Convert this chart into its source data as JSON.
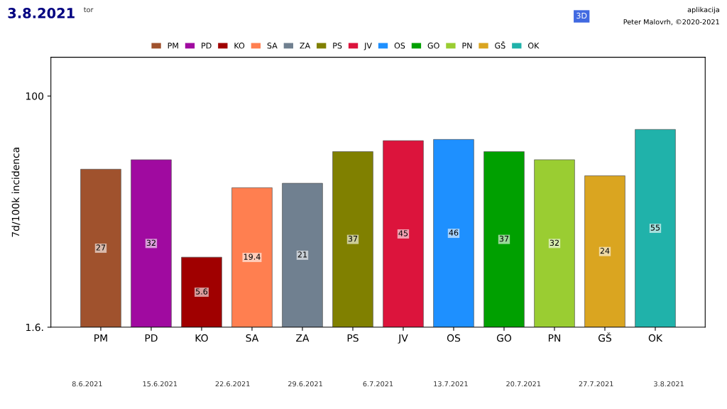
{
  "chart_data": {
    "type": "bar",
    "title": "3.8.2021",
    "subtitle": "tor",
    "ylabel": "7d/100k incidenca",
    "categories": [
      "PM",
      "PD",
      "KO",
      "SA",
      "ZA",
      "PS",
      "JV",
      "OS",
      "GO",
      "PN",
      "GŠ",
      "OK"
    ],
    "series": [
      {
        "name": "PM",
        "color": "#a0522d",
        "values": [
          27,
          null,
          null,
          null,
          null,
          null,
          null,
          null,
          null,
          null,
          null,
          null
        ]
      },
      {
        "name": "PD",
        "color": "#a00aa0",
        "values": [
          null,
          32,
          null,
          null,
          null,
          null,
          null,
          null,
          null,
          null,
          null,
          null
        ]
      },
      {
        "name": "KO",
        "color": "#a00000",
        "values": [
          null,
          null,
          5.6,
          null,
          null,
          null,
          null,
          null,
          null,
          null,
          null,
          null
        ]
      },
      {
        "name": "SA",
        "color": "#ff7f50",
        "values": [
          null,
          null,
          null,
          19.4,
          null,
          null,
          null,
          null,
          null,
          null,
          null,
          null
        ]
      },
      {
        "name": "ZA",
        "color": "#708090",
        "values": [
          null,
          null,
          null,
          null,
          21,
          null,
          null,
          null,
          null,
          null,
          null,
          null
        ]
      },
      {
        "name": "PS",
        "color": "#808000",
        "values": [
          null,
          null,
          null,
          null,
          null,
          37,
          null,
          null,
          null,
          null,
          null,
          null
        ]
      },
      {
        "name": "JV",
        "color": "#dc143c",
        "values": [
          null,
          null,
          null,
          null,
          null,
          null,
          45,
          null,
          null,
          null,
          null,
          null
        ]
      },
      {
        "name": "OS",
        "color": "#1e90ff",
        "values": [
          null,
          null,
          null,
          null,
          null,
          null,
          null,
          46,
          null,
          null,
          null,
          null
        ]
      },
      {
        "name": "GO",
        "color": "#00a000",
        "values": [
          null,
          null,
          null,
          null,
          null,
          null,
          null,
          null,
          37,
          null,
          null,
          null
        ]
      },
      {
        "name": "PN",
        "color": "#9acd32",
        "values": [
          null,
          null,
          null,
          null,
          null,
          null,
          null,
          null,
          null,
          32,
          null,
          null
        ]
      },
      {
        "name": "GŠ",
        "color": "#daa520",
        "values": [
          null,
          null,
          null,
          null,
          null,
          null,
          null,
          null,
          null,
          null,
          24,
          null
        ]
      },
      {
        "name": "OK",
        "color": "#20b2aa",
        "values": [
          null,
          null,
          null,
          null,
          null,
          null,
          null,
          null,
          null,
          null,
          null,
          55
        ]
      }
    ],
    "log": "y",
    "ylim": [
      1.6,
      200
    ],
    "yticks": [
      {
        "value": 1.6,
        "label": "1.6."
      },
      100
    ],
    "data_labels": true,
    "legend": "top",
    "grid": false,
    "annotations": [
      "aplikacija",
      "Peter Malovrh, ©2020-2021",
      "3D",
      "8.6.2021",
      "15.6.2021",
      "22.6.2021",
      "29.6.2021",
      "6.7.2021",
      "13.7.2021",
      "20.7.2021",
      "27.7.2021",
      "3.8.2021"
    ]
  }
}
